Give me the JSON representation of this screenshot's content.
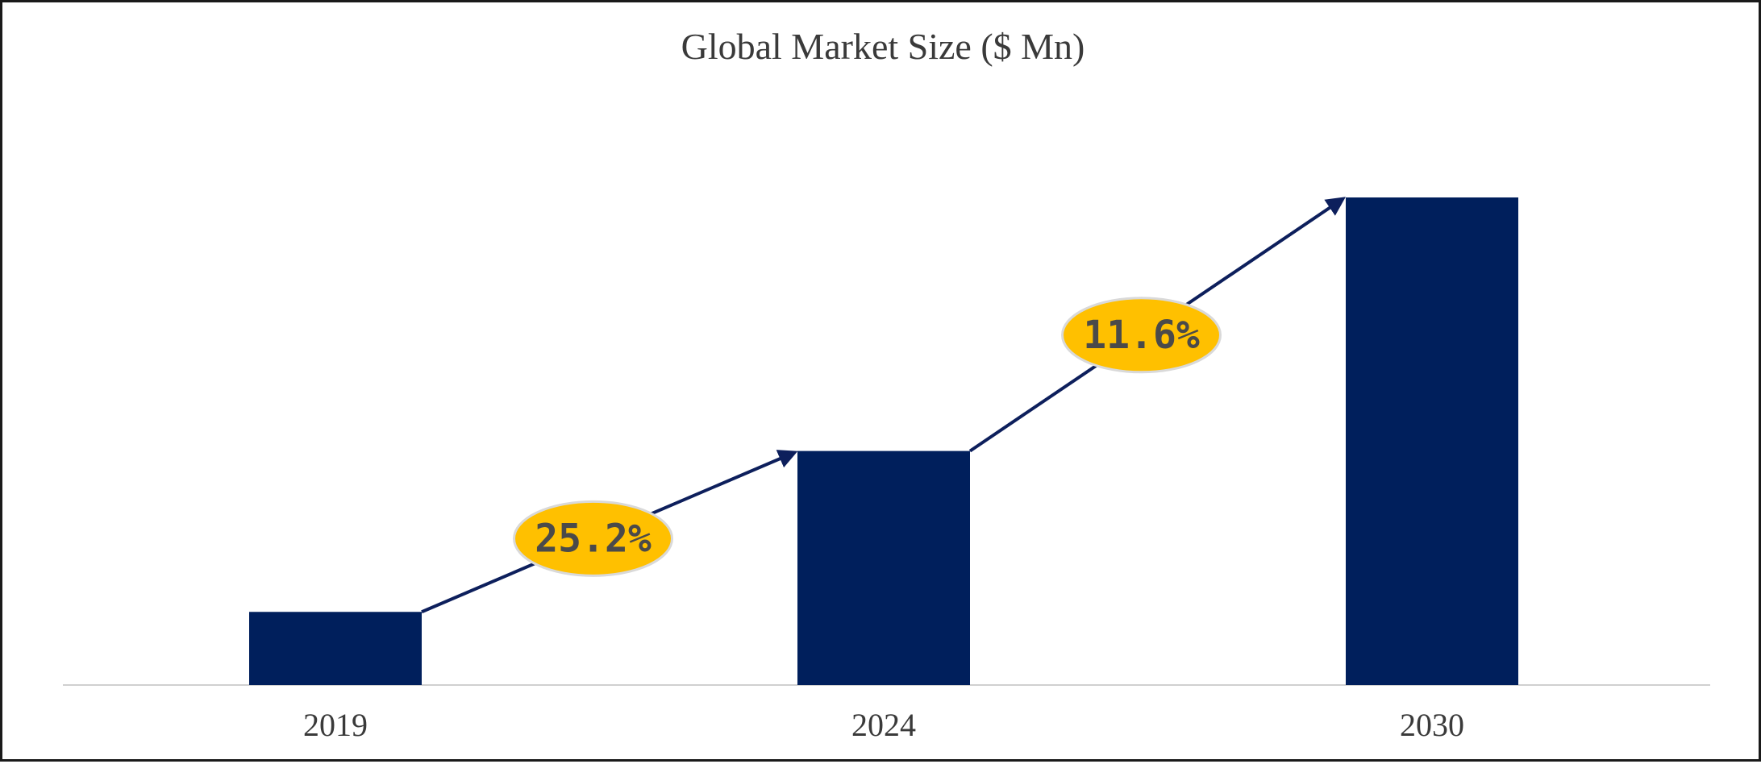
{
  "chart_data": {
    "type": "bar",
    "title": "Global Market Size ($ Mn)",
    "xlabel": "",
    "ylabel": "",
    "categories": [
      "2019",
      "2024",
      "2030"
    ],
    "values": [
      15,
      48,
      100
    ],
    "ylim": [
      0,
      100
    ],
    "grid": false,
    "legend": "none",
    "bar_color": "#001f5c",
    "annotations": [
      {
        "text": "25.2%",
        "from": "2019",
        "to": "2024",
        "color": "#ffc000"
      },
      {
        "text": "11.6%",
        "from": "2024",
        "to": "2030",
        "color": "#ffc000"
      }
    ]
  }
}
